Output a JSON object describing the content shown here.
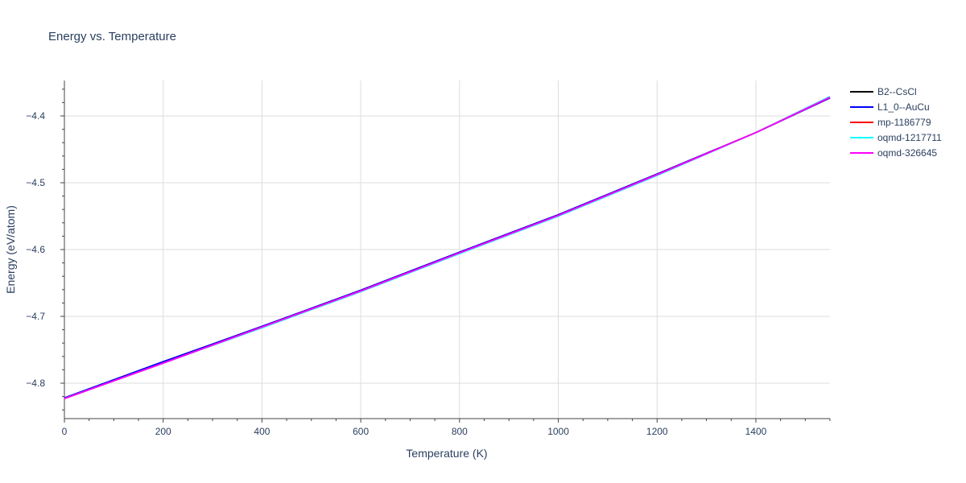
{
  "chart_data": {
    "type": "line",
    "title": "Energy vs. Temperature",
    "xlabel": "Temperature (K)",
    "ylabel": "Energy (eV/atom)",
    "xlim": [
      0,
      1550
    ],
    "ylim": [
      -4.853,
      -4.347
    ],
    "x_ticks": [
      0,
      200,
      400,
      600,
      800,
      1000,
      1200,
      1400
    ],
    "x_tick_labels": [
      "0",
      "200",
      "400",
      "600",
      "800",
      "1000",
      "1200",
      "1400"
    ],
    "y_ticks": [
      -4.8,
      -4.7,
      -4.6,
      -4.5,
      -4.4
    ],
    "y_tick_labels": [
      "−4.8",
      "−4.7",
      "−4.6",
      "−4.5",
      "−4.4"
    ],
    "grid": true,
    "legend_position": "top-right, outside plot",
    "series": [
      {
        "name": "B2--CsCl",
        "color": "#000000",
        "x": [
          0,
          200,
          400,
          600,
          800,
          1000,
          1200,
          1400,
          1550
        ],
        "y": [
          -4.822,
          -4.768,
          -4.715,
          -4.661,
          -4.604,
          -4.548,
          -4.487,
          -4.425,
          -4.373
        ]
      },
      {
        "name": "L1_0--AuCu",
        "color": "#0000ff",
        "x": [
          0,
          200,
          400,
          600,
          800,
          1000,
          1200,
          1400,
          1550
        ],
        "y": [
          -4.822,
          -4.768,
          -4.715,
          -4.661,
          -4.604,
          -4.548,
          -4.487,
          -4.425,
          -4.373
        ]
      },
      {
        "name": "mp-1186779",
        "color": "#ff0000",
        "x": [
          0,
          200,
          400,
          600,
          800,
          1000,
          1200,
          1400,
          1550
        ],
        "y": [
          -4.823,
          -4.77,
          -4.716,
          -4.662,
          -4.605,
          -4.549,
          -4.488,
          -4.425,
          -4.372
        ]
      },
      {
        "name": "oqmd-1217711",
        "color": "#00ffff",
        "x": [
          0,
          200,
          400,
          600,
          800,
          1000,
          1200,
          1400,
          1550
        ],
        "y": [
          -4.823,
          -4.77,
          -4.717,
          -4.663,
          -4.606,
          -4.55,
          -4.489,
          -4.425,
          -4.371
        ]
      },
      {
        "name": "oqmd-326645",
        "color": "#ff00ff",
        "x": [
          0,
          200,
          400,
          600,
          800,
          1000,
          1200,
          1400,
          1550
        ],
        "y": [
          -4.823,
          -4.77,
          -4.716,
          -4.662,
          -4.605,
          -4.549,
          -4.488,
          -4.425,
          -4.372
        ]
      }
    ]
  }
}
